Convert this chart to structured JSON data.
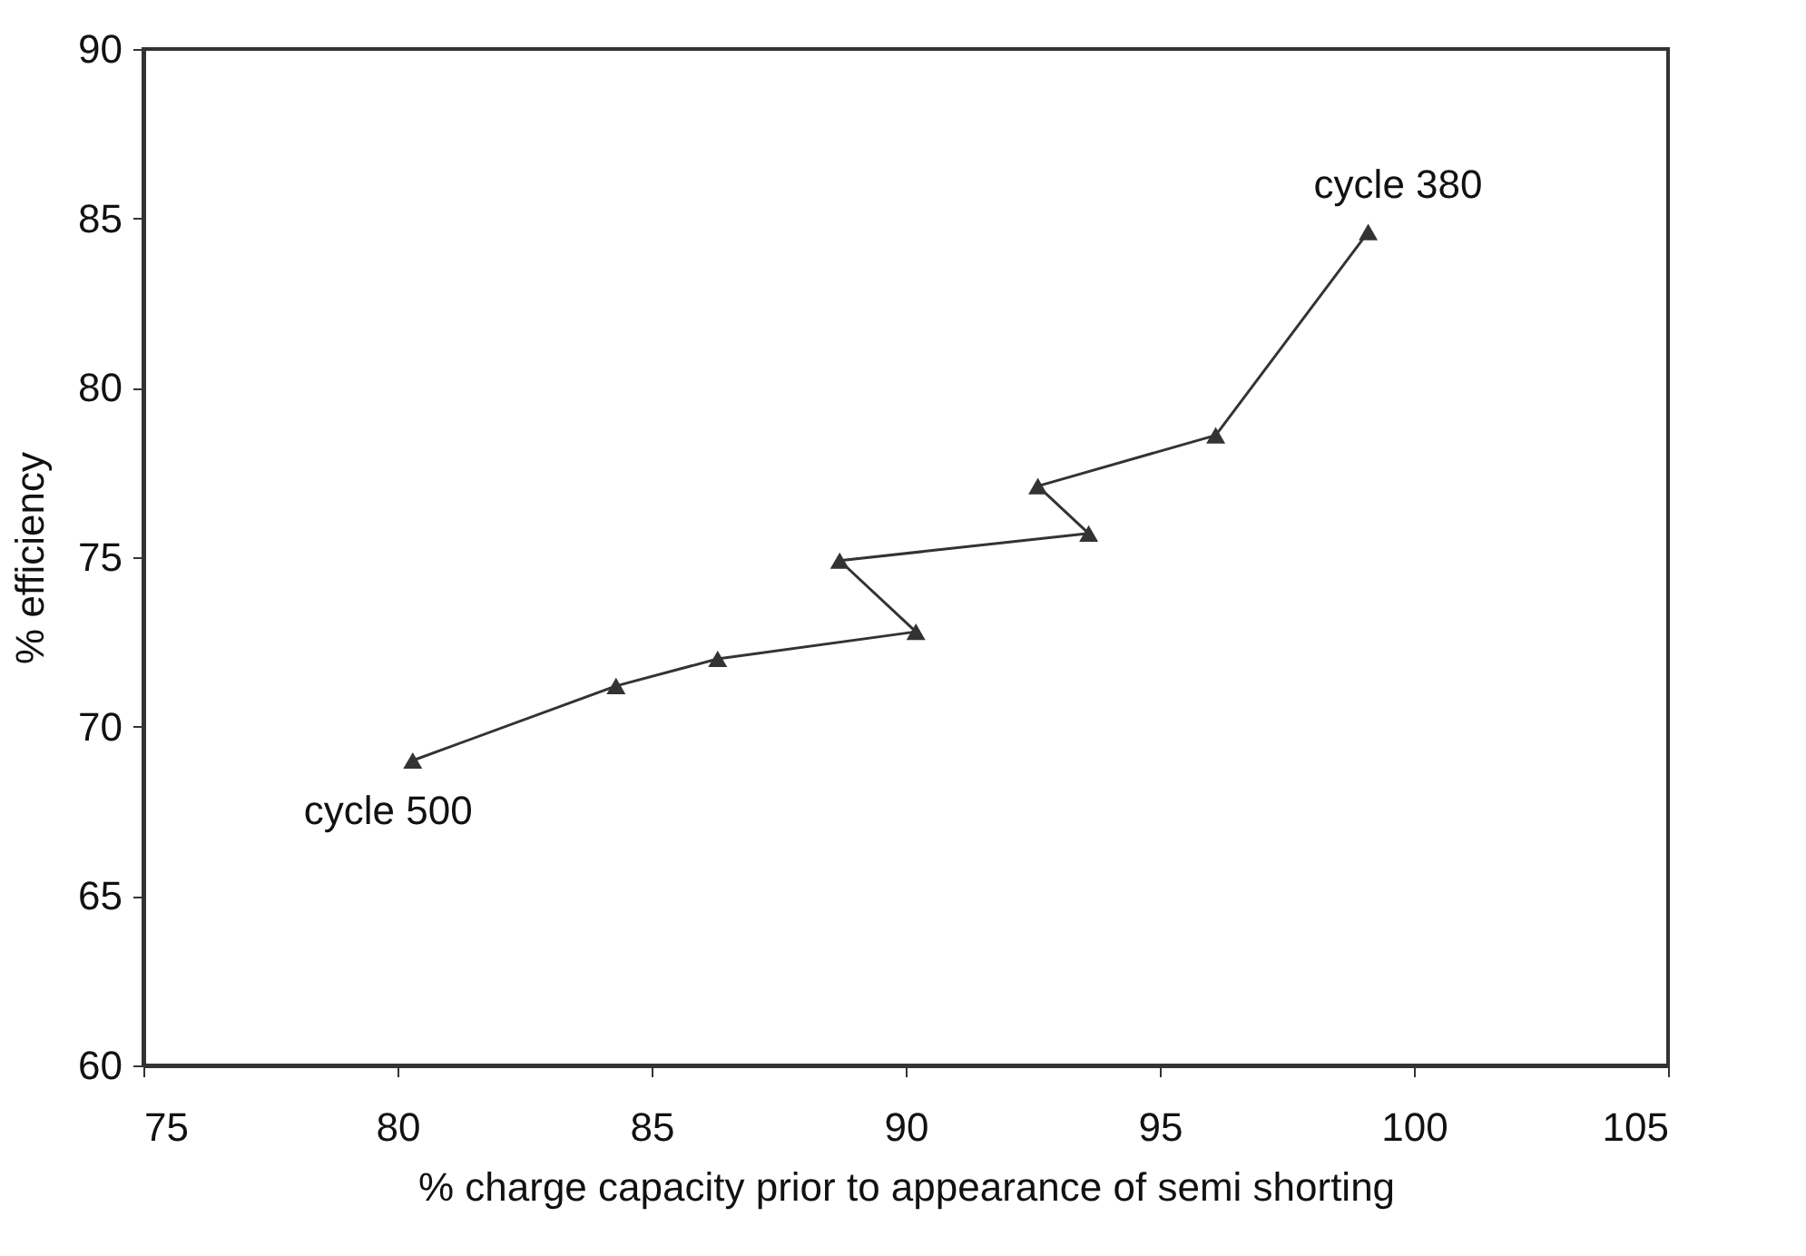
{
  "chart_data": {
    "type": "line",
    "xlabel": "% charge capacity prior to appearance of  semi shorting",
    "ylabel": "% efficiency",
    "x": [
      80.3,
      84.3,
      86.3,
      90.2,
      88.7,
      93.6,
      92.6,
      96.1,
      99.1
    ],
    "series": [
      {
        "color": "#333333",
        "values": [
          69.0,
          71.2,
          72.0,
          72.8,
          74.9,
          75.7,
          77.1,
          78.6,
          84.6
        ]
      }
    ],
    "xlim": [
      75,
      105
    ],
    "xticks": [
      75,
      80,
      85,
      90,
      95,
      100,
      105
    ],
    "ylim": [
      60,
      90
    ],
    "yticks": [
      60,
      65,
      70,
      75,
      80,
      85,
      90
    ],
    "marker": "triangle",
    "line_style": "solid",
    "grid": false,
    "annotations": [
      {
        "text": "cycle 500",
        "x": 80.3,
        "y": 69.0
      },
      {
        "text": "cycle 380",
        "x": 99.1,
        "y": 84.6
      }
    ]
  }
}
